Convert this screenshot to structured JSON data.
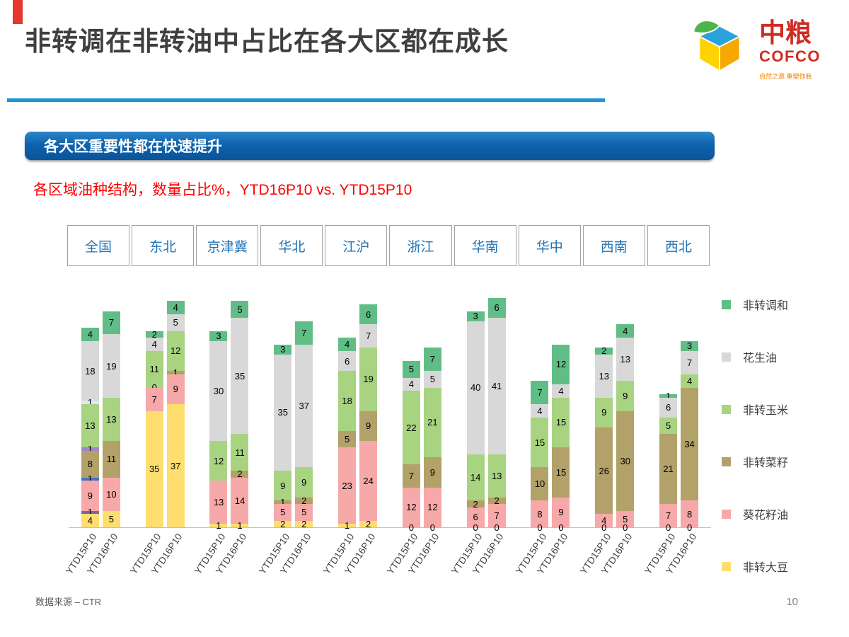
{
  "page": {
    "title": "非转调在非转油中占比在各大区都在成长",
    "page_number": "10",
    "source_note": "数据来源 – CTR"
  },
  "logo": {
    "brand_cn": "中粮",
    "brand_en": "COFCO",
    "tagline": "自然之源 重塑你我"
  },
  "banner": {
    "text": "各大区重要性都在快速提升"
  },
  "subtitle": {
    "text": "各区域油种结构，数量占比%，YTD16P10 vs. YTD15P10"
  },
  "tabs": [
    "全国",
    "东北",
    "京津冀",
    "华北",
    "江沪",
    "浙江",
    "华南",
    "华中",
    "西南",
    "西北"
  ],
  "legend": [
    {
      "label": "非转调和",
      "color": "#60BD86"
    },
    {
      "label": "花生油",
      "color": "#D8D8D8"
    },
    {
      "label": "非转玉米",
      "color": "#A8D381"
    },
    {
      "label": "非转菜籽",
      "color": "#B2A169"
    },
    {
      "label": "葵花籽油",
      "color": "#F7A8A8"
    },
    {
      "label": "非转大豆",
      "color": "#FFDE70"
    }
  ],
  "chart_data": {
    "type": "bar",
    "stacked": true,
    "title": "各区域油种结构，数量占比%，YTD16P10 vs. YTD15P10",
    "ylabel": "数量占比%",
    "stack_order": "bottom_to_top",
    "bar_labels": [
      "YTD15P10",
      "YTD16P10"
    ],
    "colors": {
      "soy": "#FFDE70",
      "sunflower": "#F7A8A8",
      "rapeseed": "#B2A169",
      "corn": "#A8D381",
      "peanut": "#D8D8D8",
      "blend": "#60BD86",
      "other1": "#8064A2",
      "other2": "#4472C4",
      "other3": "#9E86C8",
      "other4": "#DDE9F6"
    },
    "category_labels": {
      "soy": "非转大豆",
      "sunflower": "葵花籽油",
      "rapeseed": "非转菜籽",
      "corn": "非转玉米",
      "peanut": "花生油",
      "blend": "非转调和"
    },
    "groups": [
      {
        "region": "全国",
        "bars": [
          {
            "label": "YTD15P10",
            "segments": [
              [
                "soy",
                4
              ],
              [
                "other1",
                1
              ],
              [
                "sunflower",
                9
              ],
              [
                "other2",
                1
              ],
              [
                "rapeseed",
                8
              ],
              [
                "other3",
                1
              ],
              [
                "corn",
                13
              ],
              [
                "other4",
                1
              ],
              [
                "peanut",
                18
              ],
              [
                "blend",
                4
              ]
            ]
          },
          {
            "label": "YTD16P10",
            "segments": [
              [
                "soy",
                5
              ],
              [
                "sunflower",
                10
              ],
              [
                "rapeseed",
                11
              ],
              [
                "corn",
                13
              ],
              [
                "peanut",
                19
              ],
              [
                "blend",
                7
              ]
            ]
          }
        ]
      },
      {
        "region": "东北",
        "bars": [
          {
            "label": "YTD15P10",
            "segments": [
              [
                "soy",
                35
              ],
              [
                "sunflower",
                7
              ],
              [
                "rapeseed",
                0
              ],
              [
                "corn",
                11
              ],
              [
                "peanut",
                4
              ],
              [
                "blend",
                2
              ]
            ]
          },
          {
            "label": "YTD16P10",
            "segments": [
              [
                "soy",
                37
              ],
              [
                "sunflower",
                9
              ],
              [
                "rapeseed",
                1
              ],
              [
                "corn",
                12
              ],
              [
                "peanut",
                5
              ],
              [
                "blend",
                4
              ]
            ]
          }
        ]
      },
      {
        "region": "京津冀",
        "bars": [
          {
            "label": "YTD15P10",
            "segments": [
              [
                "soy",
                1
              ],
              [
                "sunflower",
                13
              ],
              [
                "corn",
                12
              ],
              [
                "peanut",
                30
              ],
              [
                "blend",
                3
              ]
            ]
          },
          {
            "label": "YTD16P10",
            "segments": [
              [
                "soy",
                1
              ],
              [
                "sunflower",
                14
              ],
              [
                "rapeseed",
                2
              ],
              [
                "corn",
                11
              ],
              [
                "peanut",
                35
              ],
              [
                "blend",
                5
              ]
            ]
          }
        ]
      },
      {
        "region": "华北",
        "bars": [
          {
            "label": "YTD15P10",
            "segments": [
              [
                "soy",
                2
              ],
              [
                "sunflower",
                5
              ],
              [
                "rapeseed",
                1
              ],
              [
                "corn",
                9
              ],
              [
                "peanut",
                35
              ],
              [
                "blend",
                3
              ]
            ]
          },
          {
            "label": "YTD16P10",
            "segments": [
              [
                "soy",
                2
              ],
              [
                "sunflower",
                5
              ],
              [
                "rapeseed",
                2
              ],
              [
                "corn",
                9
              ],
              [
                "peanut",
                37
              ],
              [
                "blend",
                7
              ]
            ]
          }
        ]
      },
      {
        "region": "江沪",
        "bars": [
          {
            "label": "YTD15P10",
            "segments": [
              [
                "soy",
                1
              ],
              [
                "sunflower",
                23
              ],
              [
                "rapeseed",
                5
              ],
              [
                "corn",
                18
              ],
              [
                "peanut",
                6
              ],
              [
                "blend",
                4
              ]
            ]
          },
          {
            "label": "YTD16P10",
            "segments": [
              [
                "soy",
                2
              ],
              [
                "sunflower",
                24
              ],
              [
                "rapeseed",
                9
              ],
              [
                "corn",
                19
              ],
              [
                "peanut",
                7
              ],
              [
                "blend",
                6
              ]
            ]
          }
        ]
      },
      {
        "region": "浙江",
        "bars": [
          {
            "label": "YTD15P10",
            "segments": [
              [
                "soy",
                0
              ],
              [
                "sunflower",
                12
              ],
              [
                "rapeseed",
                7
              ],
              [
                "corn",
                22
              ],
              [
                "peanut",
                4
              ],
              [
                "blend",
                5
              ]
            ]
          },
          {
            "label": "YTD16P10",
            "segments": [
              [
                "soy",
                0
              ],
              [
                "sunflower",
                12
              ],
              [
                "rapeseed",
                9
              ],
              [
                "corn",
                21
              ],
              [
                "peanut",
                5
              ],
              [
                "blend",
                7
              ]
            ]
          }
        ]
      },
      {
        "region": "华南",
        "bars": [
          {
            "label": "YTD15P10",
            "segments": [
              [
                "soy",
                0
              ],
              [
                "sunflower",
                6
              ],
              [
                "rapeseed",
                2
              ],
              [
                "corn",
                14
              ],
              [
                "peanut",
                40
              ],
              [
                "blend",
                3
              ]
            ]
          },
          {
            "label": "YTD16P10",
            "segments": [
              [
                "soy",
                0
              ],
              [
                "sunflower",
                7
              ],
              [
                "rapeseed",
                2
              ],
              [
                "corn",
                13
              ],
              [
                "peanut",
                41
              ],
              [
                "blend",
                6
              ]
            ]
          }
        ]
      },
      {
        "region": "华中",
        "bars": [
          {
            "label": "YTD15P10",
            "segments": [
              [
                "soy",
                0
              ],
              [
                "sunflower",
                8
              ],
              [
                "rapeseed",
                10
              ],
              [
                "corn",
                15
              ],
              [
                "peanut",
                4
              ],
              [
                "blend",
                7
              ]
            ]
          },
          {
            "label": "YTD16P10",
            "segments": [
              [
                "soy",
                0
              ],
              [
                "sunflower",
                9
              ],
              [
                "rapeseed",
                15
              ],
              [
                "corn",
                15
              ],
              [
                "peanut",
                4
              ],
              [
                "blend",
                12
              ]
            ]
          }
        ]
      },
      {
        "region": "西南",
        "bars": [
          {
            "label": "YTD15P10",
            "segments": [
              [
                "soy",
                0
              ],
              [
                "sunflower",
                4
              ],
              [
                "rapeseed",
                26
              ],
              [
                "corn",
                9
              ],
              [
                "peanut",
                13
              ],
              [
                "blend",
                2
              ]
            ]
          },
          {
            "label": "YTD16P10",
            "segments": [
              [
                "soy",
                0
              ],
              [
                "sunflower",
                5
              ],
              [
                "rapeseed",
                30
              ],
              [
                "corn",
                9
              ],
              [
                "peanut",
                13
              ],
              [
                "blend",
                4
              ]
            ]
          }
        ]
      },
      {
        "region": "西北",
        "bars": [
          {
            "label": "YTD15P10",
            "segments": [
              [
                "soy",
                0
              ],
              [
                "sunflower",
                7
              ],
              [
                "rapeseed",
                21
              ],
              [
                "corn",
                5
              ],
              [
                "peanut",
                6
              ],
              [
                "blend",
                1
              ]
            ]
          },
          {
            "label": "YTD16P10",
            "segments": [
              [
                "soy",
                0
              ],
              [
                "sunflower",
                8
              ],
              [
                "rapeseed",
                34
              ],
              [
                "corn",
                4
              ],
              [
                "peanut",
                7
              ],
              [
                "blend",
                3
              ]
            ]
          }
        ]
      }
    ]
  }
}
